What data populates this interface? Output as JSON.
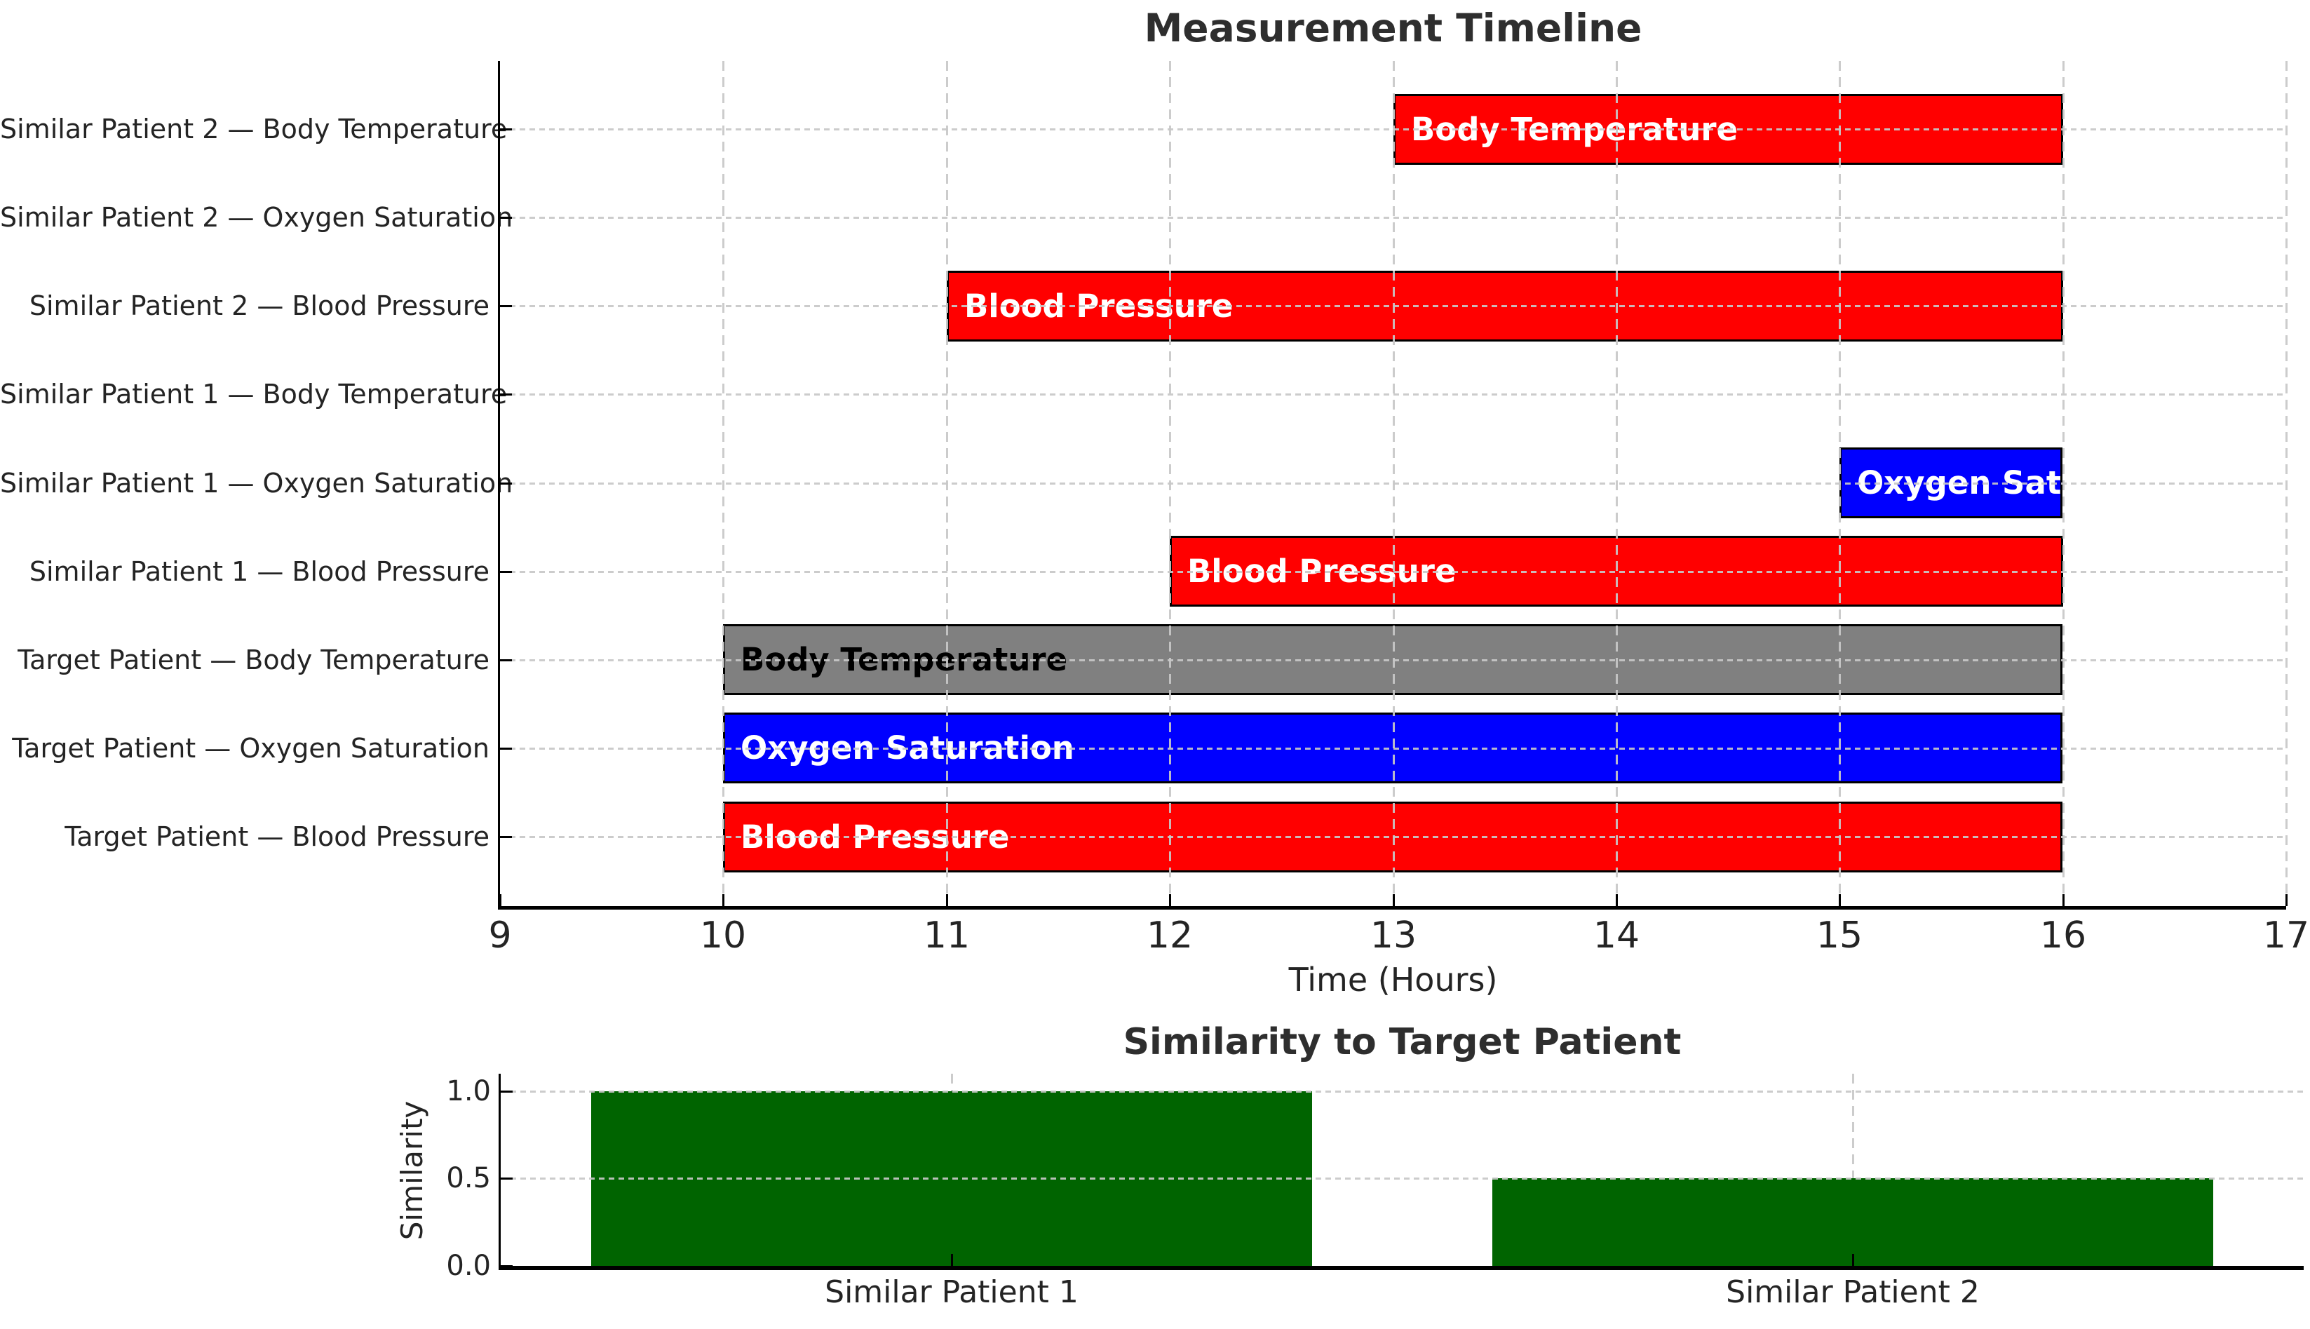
{
  "figure": {
    "background": "#ffffff",
    "grid_color": "#c8c8c8",
    "text_color": "#242424",
    "title_color": "#2e2e2e"
  },
  "chart_data": [
    {
      "type": "bar",
      "variant": "horizontal-timeline",
      "title": "Measurement Timeline",
      "xlabel": "Time (Hours)",
      "xlim": [
        9,
        17
      ],
      "xticks": [
        9,
        10,
        11,
        12,
        13,
        14,
        15,
        16,
        17
      ],
      "grid": true,
      "legend": false,
      "rows": [
        {
          "label": "Similar Patient 2 — Body Temperature",
          "bars": [
            {
              "start": 13,
              "end": 16,
              "text": "Body Temperature",
              "color": "#ff0000",
              "text_color": "#ffffff"
            }
          ]
        },
        {
          "label": "Similar Patient 2 — Oxygen Saturation",
          "bars": []
        },
        {
          "label": "Similar Patient 2 — Blood Pressure",
          "bars": [
            {
              "start": 11,
              "end": 16,
              "text": "Blood Pressure",
              "color": "#ff0000",
              "text_color": "#ffffff"
            }
          ]
        },
        {
          "label": "Similar Patient 1 — Body Temperature",
          "bars": []
        },
        {
          "label": "Similar Patient 1 — Oxygen Saturation",
          "bars": [
            {
              "start": 15,
              "end": 16,
              "text": "Oxygen Saturation",
              "color": "#0000ff",
              "text_color": "#ffffff"
            }
          ]
        },
        {
          "label": "Similar Patient 1 — Blood Pressure",
          "bars": [
            {
              "start": 12,
              "end": 16,
              "text": "Blood Pressure",
              "color": "#ff0000",
              "text_color": "#ffffff"
            }
          ]
        },
        {
          "label": "Target Patient — Body Temperature",
          "bars": [
            {
              "start": 10,
              "end": 16,
              "text": "Body Temperature",
              "color": "#808080",
              "text_color": "#000000"
            }
          ]
        },
        {
          "label": "Target Patient — Oxygen Saturation",
          "bars": [
            {
              "start": 10,
              "end": 16,
              "text": "Oxygen Saturation",
              "color": "#0000ff",
              "text_color": "#ffffff"
            }
          ]
        },
        {
          "label": "Target Patient — Blood Pressure",
          "bars": [
            {
              "start": 10,
              "end": 16,
              "text": "Blood Pressure",
              "color": "#ff0000",
              "text_color": "#ffffff"
            }
          ]
        }
      ]
    },
    {
      "type": "bar",
      "title": "Similarity to Target Patient",
      "ylabel": "Similarity",
      "categories": [
        "Similar Patient 1",
        "Similar Patient 2"
      ],
      "values": [
        1.0,
        0.5
      ],
      "bar_color": "#006400",
      "bar_width": 0.8,
      "ylim": [
        0,
        1.1
      ],
      "yticks": [
        {
          "label": "0.0",
          "value": 0.0
        },
        {
          "label": "0.5",
          "value": 0.5
        },
        {
          "label": "1.0",
          "value": 1.0
        }
      ],
      "grid": true,
      "legend": false
    }
  ]
}
